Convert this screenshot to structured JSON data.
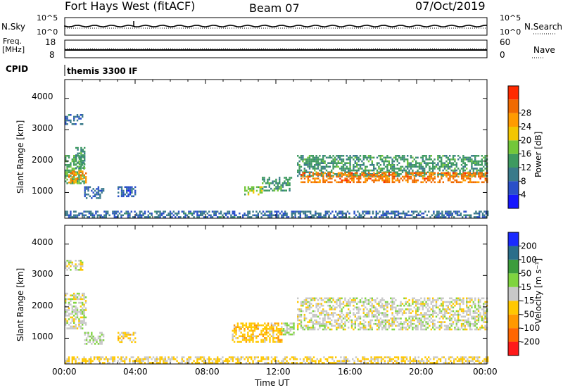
{
  "header": {
    "station": "Fort Hays West (fitACF)",
    "beam": "Beam 07",
    "date": "07/Oct/2019"
  },
  "top_panels": {
    "nsky_label": "N.Sky",
    "nsky_ticks": [
      "10^5",
      "10^0"
    ],
    "nsearch_label": "N.Search",
    "nsearch_ticks": [
      "10^5",
      "10^0"
    ],
    "freq_label_1": "Freq.",
    "freq_label_2": "[MHz]",
    "freq_ticks": [
      "18",
      "8"
    ],
    "nave_label": "Nave",
    "nave_ticks": [
      "60",
      "0"
    ],
    "cpid_label": "CPID",
    "cpid_value": "themis 3300 IF"
  },
  "chart_data": [
    {
      "type": "heatmap",
      "name": "power",
      "ylabel": "Slant Range [km]",
      "ylim": [
        180,
        4600
      ],
      "yticks": [
        "1000",
        "2000",
        "3000",
        "4000"
      ],
      "colorbar_label": "Power [dB]",
      "colorbar_ticks": [
        "4",
        "8",
        "12",
        "16",
        "20",
        "24",
        "28"
      ],
      "colorbar_range": [
        0,
        32
      ],
      "colors": [
        "#1616ff",
        "#2a50c8",
        "#3a7a8a",
        "#3e9a60",
        "#73c73a",
        "#f2c600",
        "#ff9b00",
        "#f06a00",
        "#ff2a00"
      ],
      "regions": [
        {
          "t": [
            0.0,
            1.1
          ],
          "r": [
            1300,
            2200
          ],
          "level": 14
        },
        {
          "t": [
            0.6,
            1.1
          ],
          "r": [
            1800,
            2450
          ],
          "level": 12
        },
        {
          "t": [
            0.2,
            1.2
          ],
          "r": [
            1300,
            1700
          ],
          "level": 24
        },
        {
          "t": [
            1.1,
            2.2
          ],
          "r": [
            800,
            1200
          ],
          "level": 8
        },
        {
          "t": [
            3.0,
            4.0
          ],
          "r": [
            900,
            1200
          ],
          "level": 6
        },
        {
          "t": [
            10.2,
            11.2
          ],
          "r": [
            950,
            1200
          ],
          "level": 16
        },
        {
          "t": [
            11.2,
            12.9
          ],
          "r": [
            1050,
            1500
          ],
          "level": 12
        },
        {
          "t": [
            13.2,
            24.0
          ],
          "r": [
            1550,
            2200
          ],
          "level": 12
        },
        {
          "t": [
            13.4,
            24.0
          ],
          "r": [
            1300,
            1650
          ],
          "level": 26
        },
        {
          "t": [
            0.0,
            24.0
          ],
          "r": [
            200,
            420
          ],
          "level": 8
        },
        {
          "t": [
            0.0,
            1.0
          ],
          "r": [
            3200,
            3500
          ],
          "level": 8
        }
      ]
    },
    {
      "type": "heatmap",
      "name": "velocity",
      "ylabel": "Slant Range [km]",
      "ylim": [
        180,
        4600
      ],
      "yticks": [
        "1000",
        "2000",
        "3000",
        "4000"
      ],
      "colorbar_label": "Velocity [m s⁻¹]",
      "colorbar_ticks": [
        "200",
        "100",
        "50",
        "15",
        "-15",
        "-50",
        "-100",
        "-200"
      ],
      "colorbar_range": [
        -250,
        250
      ],
      "colors": [
        "#ff1a1a",
        "#ff6600",
        "#ff9900",
        "#ffc800",
        "#c8c8c8",
        "#7fd43f",
        "#3c9c3c",
        "#2a6e8a",
        "#1a2aff"
      ],
      "regions": [
        {
          "t": [
            0.0,
            1.2
          ],
          "r": [
            1300,
            2450
          ],
          "value": 0
        },
        {
          "t": [
            1.1,
            2.2
          ],
          "r": [
            800,
            1200
          ],
          "value": 30
        },
        {
          "t": [
            3.0,
            4.0
          ],
          "r": [
            900,
            1200
          ],
          "value": -40
        },
        {
          "t": [
            9.5,
            12.3
          ],
          "r": [
            900,
            1500
          ],
          "value": -60
        },
        {
          "t": [
            12.3,
            13.0
          ],
          "r": [
            1100,
            1500
          ],
          "value": 30
        },
        {
          "t": [
            13.2,
            24.0
          ],
          "r": [
            1300,
            2300
          ],
          "value": 0
        },
        {
          "t": [
            0.0,
            24.0
          ],
          "r": [
            200,
            420
          ],
          "value": -40
        },
        {
          "t": [
            0.0,
            1.0
          ],
          "r": [
            3200,
            3500
          ],
          "value": 0
        }
      ]
    }
  ],
  "xaxis": {
    "label": "Time UT",
    "ticks": [
      "00:00",
      "04:00",
      "08:00",
      "12:00",
      "16:00",
      "20:00",
      "00:00"
    ],
    "range_hours": [
      0,
      24
    ]
  }
}
